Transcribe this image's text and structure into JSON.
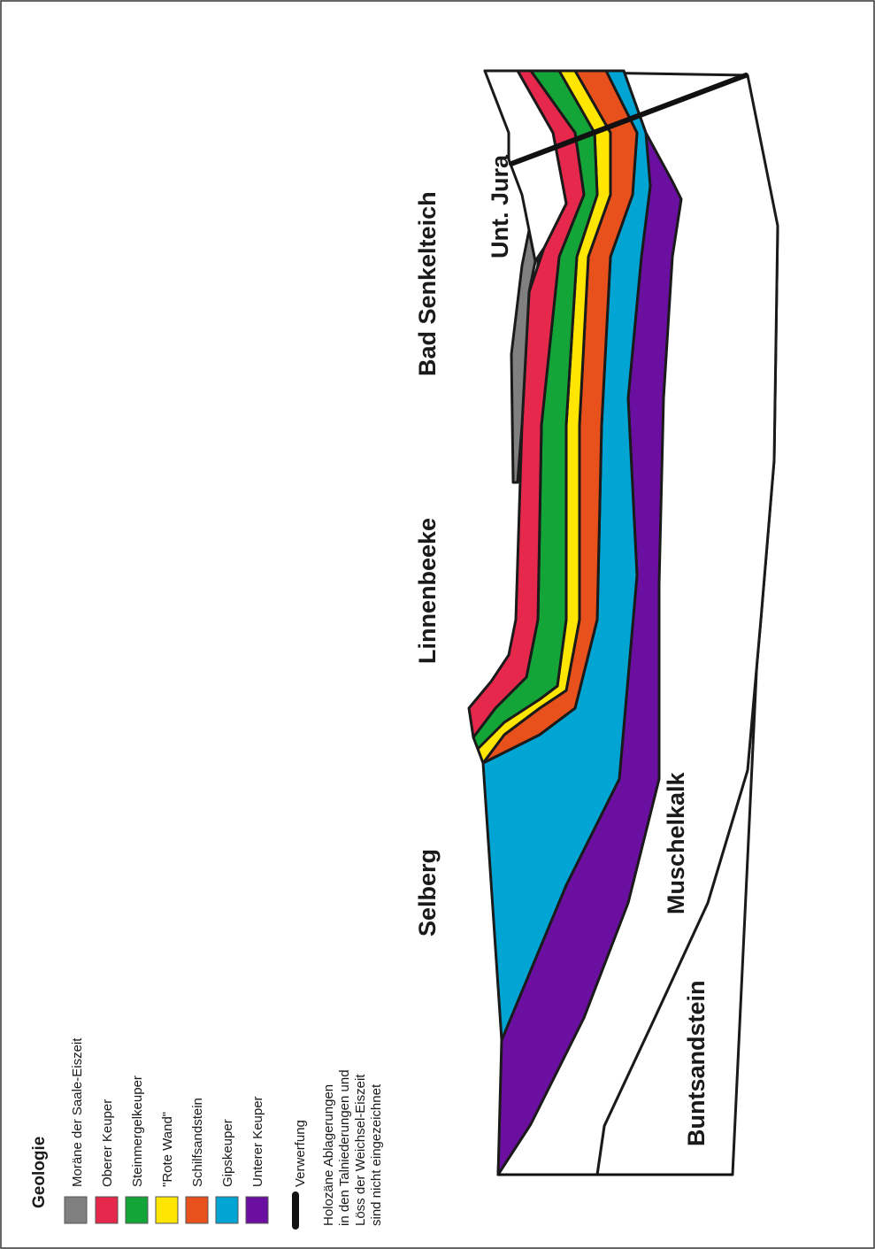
{
  "legend": {
    "title": "Geologie",
    "items": [
      {
        "key": "moraene",
        "label": "Moräne der Saale-Eiszeit",
        "color": "#808080"
      },
      {
        "key": "oberer_keuper",
        "label": "Oberer Keuper",
        "color": "#e5284b"
      },
      {
        "key": "steinmergelkeuper",
        "label": "Steinmergelkeuper",
        "color": "#13a538"
      },
      {
        "key": "rote_wand",
        "label": "\"Rote Wand\"",
        "color": "#ffe600"
      },
      {
        "key": "schilfsandstein",
        "label": "Schilfsandstein",
        "color": "#e8501c"
      },
      {
        "key": "gipskeuper",
        "label": "Gipskeuper",
        "color": "#00a5d4"
      },
      {
        "key": "unterer_keuper",
        "label": "Unterer Keuper",
        "color": "#6a0fa0"
      }
    ],
    "fault_label": "Verwerfung",
    "note_lines": [
      "Holozäne Ablagerungen",
      "in den Talniederungen und",
      "Löss der Weichsel-Eiszeit",
      "sind nicht eingezeichnet"
    ]
  },
  "places": {
    "selberg": "Selberg",
    "linnenbeeke": "Linnenbeeke",
    "bad_senkelteich": "Bad Senkelteich",
    "unt_jura": "Unt. Jura",
    "muschelkalk": "Muschelkalk",
    "buntsandstein": "Buntsandstein"
  }
}
